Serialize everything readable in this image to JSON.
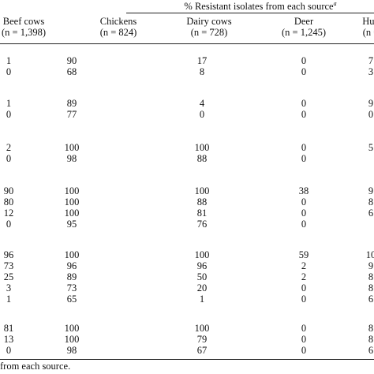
{
  "table": {
    "title": "% Resistant isolates from each source",
    "title_note": "a",
    "columns": [
      {
        "name": "Beef cows",
        "n": "(n = 1,398)"
      },
      {
        "name": "Chickens",
        "n": "(n = 824)"
      },
      {
        "name": "Dairy cows",
        "n": "(n = 728)"
      },
      {
        "name": "Deer",
        "n": "(n = 1,245)"
      },
      {
        "name": "Hun",
        "n": "(n ="
      }
    ],
    "groups": [
      [
        [
          1,
          90,
          17,
          0,
          7
        ],
        [
          0,
          68,
          8,
          0,
          3
        ]
      ],
      [
        [
          1,
          89,
          4,
          0,
          9
        ],
        [
          0,
          77,
          0,
          0,
          0
        ]
      ],
      [
        [
          2,
          100,
          100,
          0,
          5
        ],
        [
          0,
          98,
          88,
          0
        ]
      ],
      [
        [
          90,
          100,
          100,
          38,
          9
        ],
        [
          80,
          100,
          88,
          0,
          8
        ],
        [
          12,
          100,
          81,
          0,
          6
        ],
        [
          0,
          95,
          76,
          0
        ]
      ],
      [
        [
          96,
          100,
          100,
          59,
          10
        ],
        [
          73,
          96,
          96,
          2,
          9
        ],
        [
          25,
          89,
          50,
          2,
          8
        ],
        [
          3,
          73,
          20,
          0,
          8
        ],
        [
          1,
          65,
          1,
          0,
          6
        ]
      ],
      [
        [
          81,
          100,
          100,
          0,
          8
        ],
        [
          13,
          100,
          79,
          0,
          8
        ],
        [
          0,
          98,
          67,
          0,
          6
        ]
      ]
    ],
    "footer": "from each source."
  }
}
